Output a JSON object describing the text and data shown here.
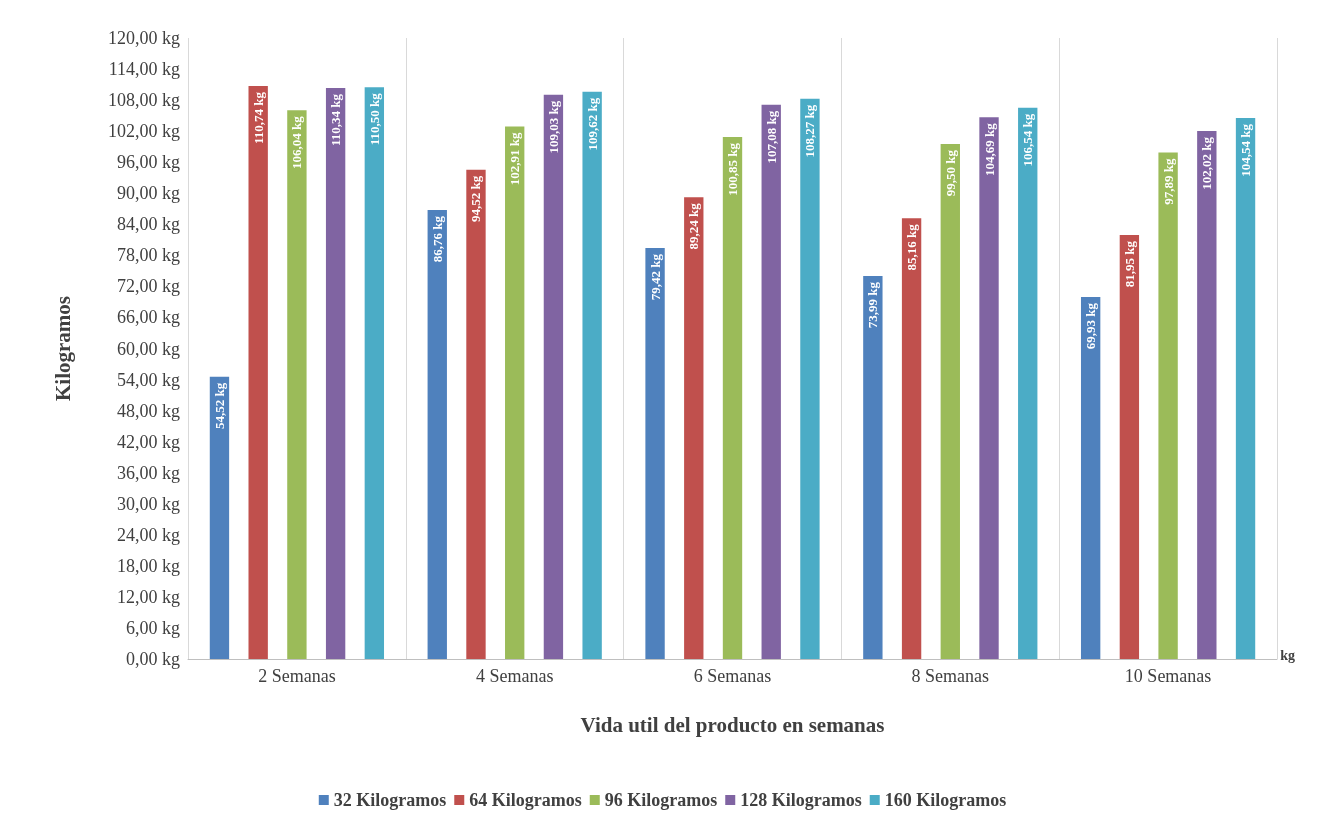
{
  "chart_data": {
    "type": "bar",
    "xlabel": "Vida util del producto en semanas",
    "ylabel": "Kilogramos",
    "categories": [
      "2 Semanas",
      "4 Semanas",
      "6 Semanas",
      "8 Semanas",
      "10 Semanas"
    ],
    "series": [
      {
        "name": "32 Kilogramos",
        "color": "#4f81bd",
        "values": [
          54.52,
          86.76,
          79.42,
          73.99,
          69.93
        ],
        "value_labels": [
          "54,52 kg",
          "86,76 kg",
          "79,42 kg",
          "73,99 kg",
          "69,93 kg"
        ]
      },
      {
        "name": "64 Kilogramos",
        "color": "#c0504d",
        "values": [
          110.74,
          94.52,
          89.24,
          85.16,
          81.95
        ],
        "value_labels": [
          "110,74 kg",
          "94,52 kg",
          "89,24 kg",
          "85,16 kg",
          "81,95 kg"
        ]
      },
      {
        "name": "96 Kilogramos",
        "color": "#9bbb59",
        "values": [
          106.04,
          102.91,
          100.85,
          99.5,
          97.89
        ],
        "value_labels": [
          "106,04 kg",
          "102,91 kg",
          "100,85 kg",
          "99,50 kg",
          "97,89 kg"
        ]
      },
      {
        "name": "128 Kilogramos",
        "color": "#8064a2",
        "values": [
          110.34,
          109.03,
          107.08,
          104.69,
          102.02
        ],
        "value_labels": [
          "110,34 kg",
          "109,03 kg",
          "107,08 kg",
          "104,69 kg",
          "102,02 kg"
        ]
      },
      {
        "name": "160 Kilogramos",
        "color": "#4bacc6",
        "values": [
          110.5,
          109.62,
          108.27,
          106.54,
          104.54
        ],
        "value_labels": [
          "110,50 kg",
          "109,62 kg",
          "108,27 kg",
          "106,54 kg",
          "104,54 kg"
        ]
      }
    ],
    "ylim": [
      0,
      120
    ],
    "yticks": [
      {
        "value": 0,
        "label": "0,00 kg"
      },
      {
        "value": 6,
        "label": "6,00 kg"
      },
      {
        "value": 12,
        "label": "12,00 kg"
      },
      {
        "value": 18,
        "label": "18,00 kg"
      },
      {
        "value": 24,
        "label": "24,00 kg"
      },
      {
        "value": 30,
        "label": "30,00 kg"
      },
      {
        "value": 36,
        "label": "36,00 kg"
      },
      {
        "value": 42,
        "label": "42,00 kg"
      },
      {
        "value": 48,
        "label": "48,00 kg"
      },
      {
        "value": 54,
        "label": "54,00 kg"
      },
      {
        "value": 60,
        "label": "60,00 kg"
      },
      {
        "value": 66,
        "label": "66,00 kg"
      },
      {
        "value": 72,
        "label": "72,00 kg"
      },
      {
        "value": 78,
        "label": "78,00 kg"
      },
      {
        "value": 84,
        "label": "84,00 kg"
      },
      {
        "value": 90,
        "label": "90,00 kg"
      },
      {
        "value": 96,
        "label": "96,00 kg"
      },
      {
        "value": 102,
        "label": "102,00 kg"
      },
      {
        "value": 108,
        "label": "108,00 kg"
      },
      {
        "value": 114,
        "label": "114,00 kg"
      },
      {
        "value": 120,
        "label": "120,00 kg"
      }
    ],
    "grid": "x",
    "legend": "bottom",
    "annotations": [
      "kg"
    ]
  }
}
